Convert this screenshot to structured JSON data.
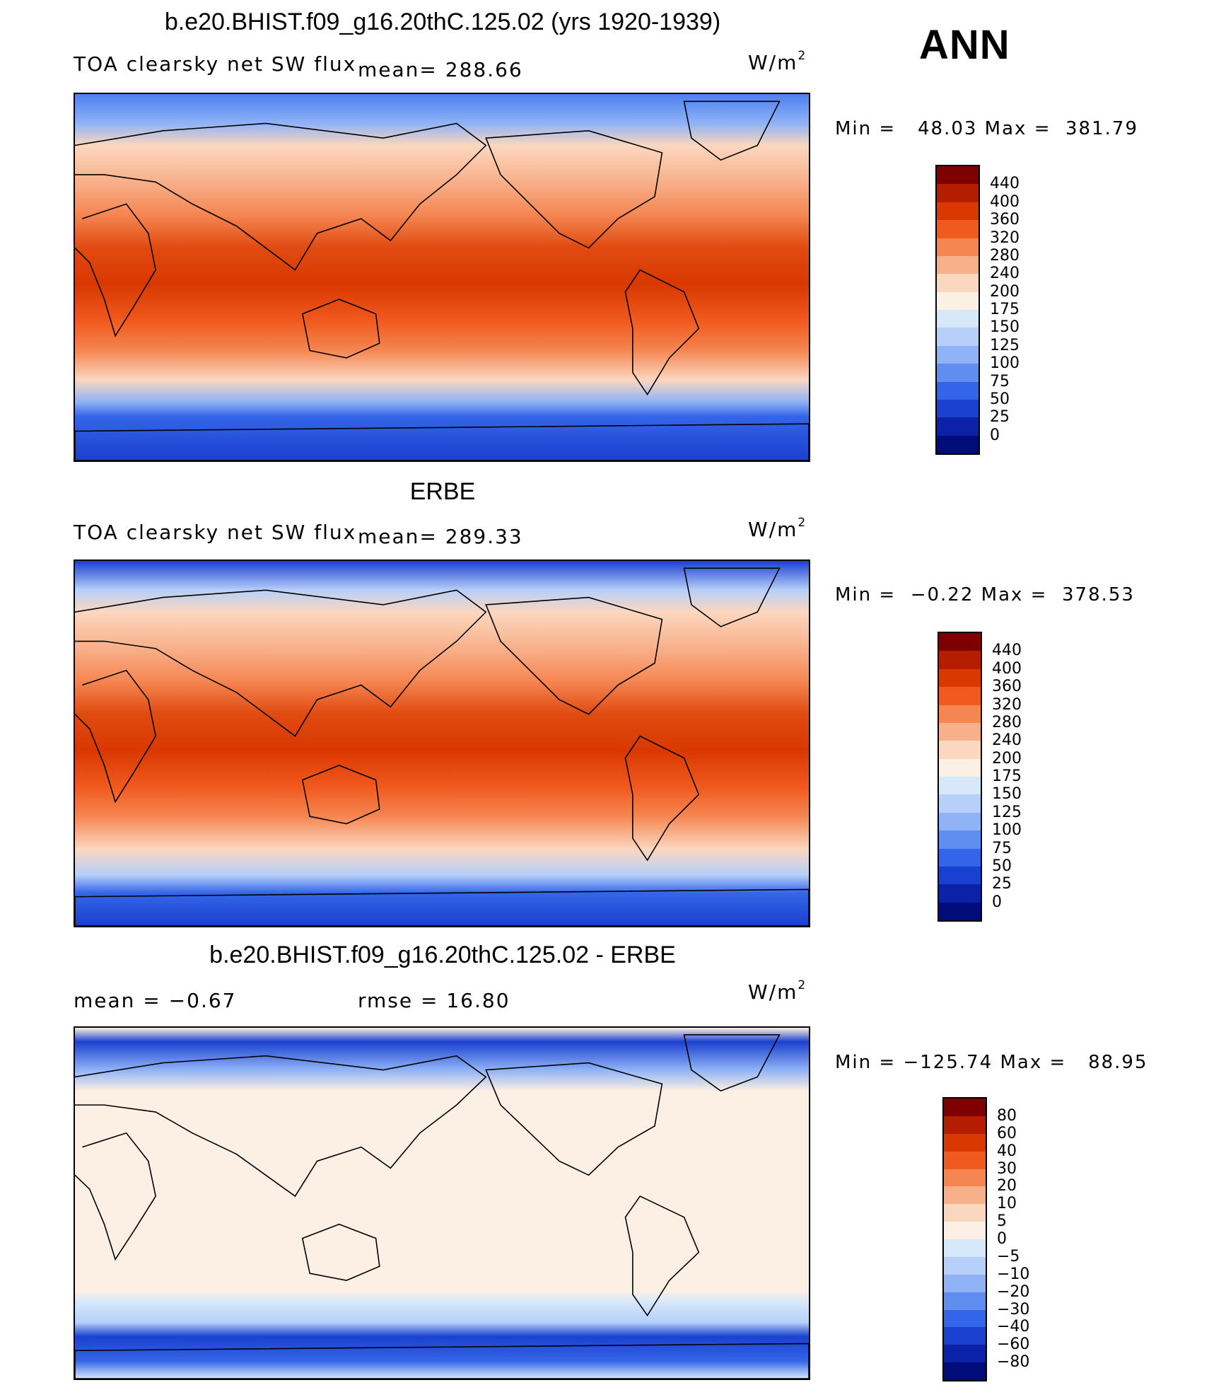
{
  "season": "ANN",
  "panels": [
    {
      "title": "b.e20.BHIST.f09_g16.20thC.125.02 (yrs 1920-1939)",
      "left_text": "TOA clearsky net SW flux",
      "stat_text": "mean=  288.66",
      "units_base": "W/m",
      "units_exp": "2",
      "minmax": "Min =   48.03 Max =  381.79",
      "colorbar": {
        "labels": [
          "440",
          "400",
          "360",
          "320",
          "280",
          "240",
          "200",
          "175",
          "150",
          "125",
          "100",
          "75",
          "50",
          "25",
          "0"
        ],
        "colors": [
          "#7f0000",
          "#b41d00",
          "#d93800",
          "#f15a1e",
          "#f58652",
          "#f8b08a",
          "#fcd7bf",
          "#fcefe3",
          "#d8e8fb",
          "#b7d0fa",
          "#8fb3f6",
          "#5f8ef0",
          "#3465e8",
          "#1a40cf",
          "#0b22a8",
          "#000c7a"
        ]
      },
      "map_bands": [
        {
          "at": 0,
          "color": "#4d7ff0"
        },
        {
          "at": 0.08,
          "color": "#8fb3f6"
        },
        {
          "at": 0.14,
          "color": "#fcd7bf"
        },
        {
          "at": 0.24,
          "color": "#f8b08a"
        },
        {
          "at": 0.33,
          "color": "#f58652"
        },
        {
          "at": 0.42,
          "color": "#e04a10"
        },
        {
          "at": 0.52,
          "color": "#d93800"
        },
        {
          "at": 0.62,
          "color": "#f15a1e"
        },
        {
          "at": 0.7,
          "color": "#f58652"
        },
        {
          "at": 0.78,
          "color": "#fcd7bf"
        },
        {
          "at": 0.84,
          "color": "#8fb3f6"
        },
        {
          "at": 0.88,
          "color": "#3465e8"
        },
        {
          "at": 1,
          "color": "#1a40cf"
        }
      ]
    },
    {
      "title": "ERBE",
      "left_text": "TOA clearsky net SW flux",
      "stat_text": "mean=  289.33",
      "units_base": "W/m",
      "units_exp": "2",
      "minmax": "Min =  −0.22 Max =  378.53",
      "colorbar": {
        "labels": [
          "440",
          "400",
          "360",
          "320",
          "280",
          "240",
          "200",
          "175",
          "150",
          "125",
          "100",
          "75",
          "50",
          "25",
          "0"
        ],
        "colors": [
          "#7f0000",
          "#b41d00",
          "#d93800",
          "#f15a1e",
          "#f58652",
          "#f8b08a",
          "#fcd7bf",
          "#fcefe3",
          "#d8e8fb",
          "#b7d0fa",
          "#8fb3f6",
          "#5f8ef0",
          "#3465e8",
          "#1a40cf",
          "#0b22a8",
          "#000c7a"
        ]
      },
      "map_bands": [
        {
          "at": 0,
          "color": "#1a40cf"
        },
        {
          "at": 0.08,
          "color": "#b7d0fa"
        },
        {
          "at": 0.14,
          "color": "#fcd7bf"
        },
        {
          "at": 0.24,
          "color": "#f8b08a"
        },
        {
          "at": 0.33,
          "color": "#f58652"
        },
        {
          "at": 0.42,
          "color": "#e04a10"
        },
        {
          "at": 0.52,
          "color": "#d93800"
        },
        {
          "at": 0.62,
          "color": "#f15a1e"
        },
        {
          "at": 0.7,
          "color": "#f58652"
        },
        {
          "at": 0.79,
          "color": "#fcd7bf"
        },
        {
          "at": 0.86,
          "color": "#b7d0fa"
        },
        {
          "at": 0.91,
          "color": "#3465e8"
        },
        {
          "at": 1,
          "color": "#1a40cf"
        }
      ]
    },
    {
      "title": "b.e20.BHIST.f09_g16.20thC.125.02 - ERBE",
      "left_text": "mean =   −0.67",
      "stat_text": "rmse =   16.80",
      "units_base": "W/m",
      "units_exp": "2",
      "minmax": "Min = −125.74 Max =   88.95",
      "colorbar": {
        "labels": [
          "80",
          "60",
          "40",
          "30",
          "20",
          "10",
          "5",
          "0",
          "−5",
          "−10",
          "−20",
          "−30",
          "−40",
          "−60",
          "−80"
        ],
        "colors": [
          "#7f0000",
          "#b41d00",
          "#d93800",
          "#f15a1e",
          "#f58652",
          "#f8b08a",
          "#fcd7bf",
          "#fcefe3",
          "#d8e8fb",
          "#b7d0fa",
          "#8fb3f6",
          "#5f8ef0",
          "#3465e8",
          "#1a40cf",
          "#0b22a8",
          "#000c7a"
        ]
      },
      "map_bands": [
        {
          "at": 0,
          "color": "#fcefe3"
        },
        {
          "at": 0.04,
          "color": "#1a40cf"
        },
        {
          "at": 0.12,
          "color": "#8fb3f6"
        },
        {
          "at": 0.18,
          "color": "#fcefe3"
        },
        {
          "at": 0.75,
          "color": "#fcefe3"
        },
        {
          "at": 0.78,
          "color": "#d8e8fb"
        },
        {
          "at": 0.84,
          "color": "#b7d0fa"
        },
        {
          "at": 0.88,
          "color": "#1a40cf"
        },
        {
          "at": 0.95,
          "color": "#3465e8"
        },
        {
          "at": 1,
          "color": "#d8e8fb"
        }
      ]
    }
  ]
}
